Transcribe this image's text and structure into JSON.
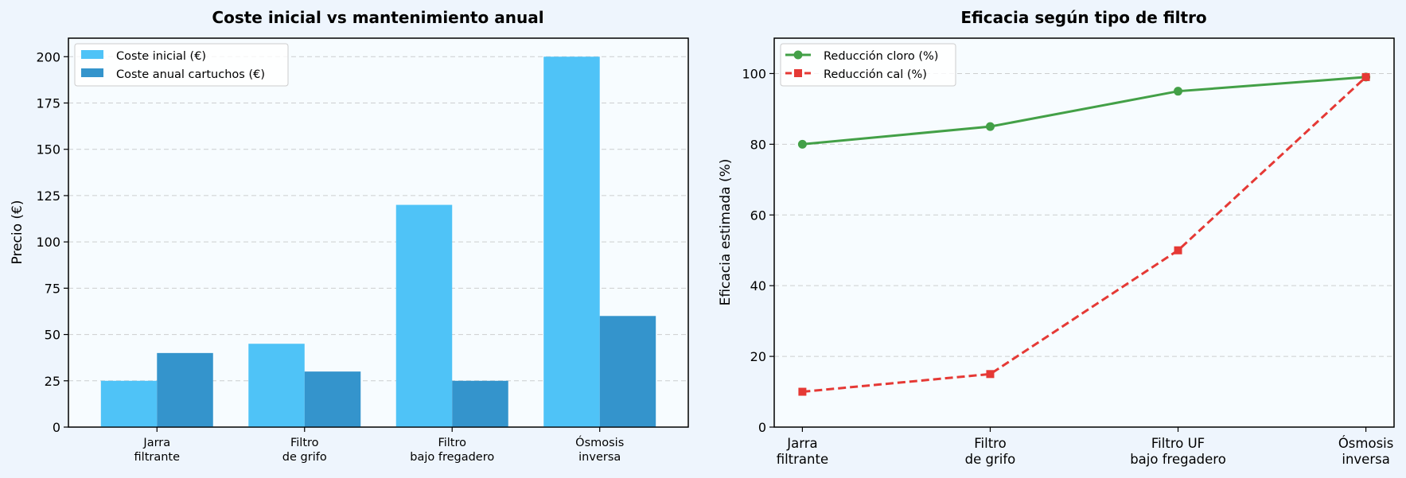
{
  "chart_data": [
    {
      "type": "bar",
      "title": "Coste inicial vs mantenimiento anual",
      "xlabel": "",
      "ylabel": "Precio (€)",
      "ylim": [
        0,
        210
      ],
      "yticks": [
        0,
        25,
        50,
        75,
        100,
        125,
        150,
        175,
        200
      ],
      "grid": true,
      "legend_position": "top-left",
      "categories": [
        [
          "Jarra",
          "filtrante"
        ],
        [
          "Filtro",
          "de grifo"
        ],
        [
          "Filtro",
          "bajo fregadero"
        ],
        [
          "Ósmosis",
          "inversa"
        ]
      ],
      "series": [
        {
          "name": "Coste inicial (€)",
          "values": [
            25,
            45,
            120,
            200
          ],
          "color": "#4fc3f7"
        },
        {
          "name": "Coste anual cartuchos (€)",
          "values": [
            40,
            30,
            25,
            60
          ],
          "color": "#3494cc"
        }
      ]
    },
    {
      "type": "line",
      "title": "Eficacia según tipo de filtro",
      "xlabel": "",
      "ylabel": "Eficacia estimada (%)",
      "ylim": [
        0,
        110
      ],
      "yticks": [
        0,
        20,
        40,
        60,
        80,
        100
      ],
      "grid": true,
      "legend_position": "top-left",
      "categories": [
        [
          "Jarra",
          "filtrante"
        ],
        [
          "Filtro",
          "de grifo"
        ],
        [
          "Filtro UF",
          "bajo fregadero"
        ],
        [
          "Ósmosis",
          "inversa"
        ]
      ],
      "series": [
        {
          "name": "Reducción cloro (%)",
          "values": [
            80,
            85,
            95,
            99
          ],
          "color": "#43a047",
          "marker": "circle",
          "line_style": "solid"
        },
        {
          "name": "Reducción cal (%)",
          "values": [
            10,
            15,
            50,
            99
          ],
          "color": "#e53935",
          "marker": "square",
          "line_style": "dashed"
        }
      ]
    }
  ]
}
